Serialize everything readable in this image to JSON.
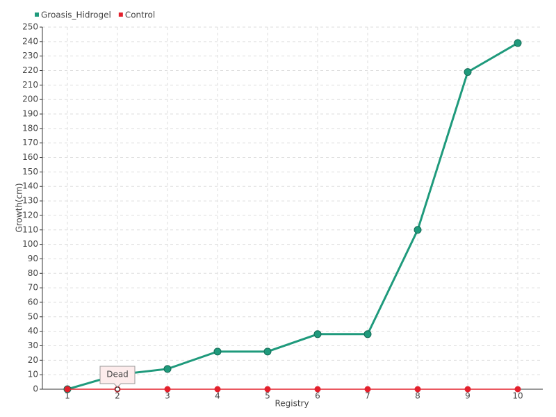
{
  "chart_data": {
    "type": "line",
    "x_label": "Registry",
    "y_label": "Growth(cm)",
    "categories": [
      "1",
      "2",
      "3",
      "4",
      "5",
      "6",
      "7",
      "8",
      "9",
      "10"
    ],
    "series": [
      {
        "name": "Groasis_Hidrogel",
        "color": "#1f9a7c",
        "values": [
          0,
          10,
          14,
          26,
          26,
          38,
          38,
          110,
          219,
          239
        ]
      },
      {
        "name": "Control",
        "color": "#e3202c",
        "values": [
          0,
          0,
          0,
          0,
          0,
          0,
          0,
          0,
          0,
          0
        ]
      }
    ],
    "annotations": [
      {
        "text": "Dead",
        "x": "2",
        "series": "Control"
      }
    ],
    "ylim": [
      0,
      250
    ],
    "yticks": [
      0,
      10,
      20,
      30,
      40,
      50,
      60,
      70,
      80,
      90,
      100,
      110,
      120,
      130,
      140,
      150,
      160,
      170,
      180,
      190,
      200,
      210,
      220,
      230,
      240,
      250
    ],
    "grid": true,
    "legend": "top-left"
  }
}
